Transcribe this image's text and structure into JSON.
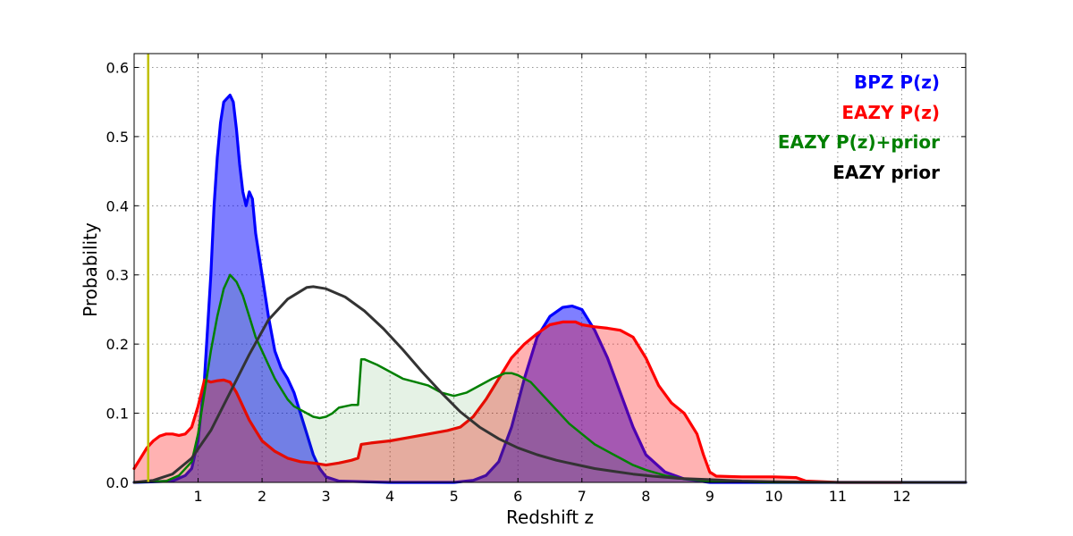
{
  "chart_data": {
    "type": "area",
    "title": "",
    "xlabel": "Redshift z",
    "ylabel": "Probability",
    "xlim": [
      0,
      13
    ],
    "ylim": [
      0,
      0.62
    ],
    "xticks": [
      1,
      2,
      3,
      4,
      5,
      6,
      7,
      8,
      9,
      10,
      11,
      12
    ],
    "yticks": [
      0.0,
      0.1,
      0.2,
      0.3,
      0.4,
      0.5,
      0.6
    ],
    "ytick_labels": [
      "0.0",
      "0.1",
      "0.2",
      "0.3",
      "0.4",
      "0.5",
      "0.6"
    ],
    "grid": true,
    "vline": {
      "x": 0.22,
      "color": "#bfbf00"
    },
    "legend": {
      "location": "top-right",
      "entries": [
        {
          "label": "BPZ P(z)",
          "color": "#0000ff"
        },
        {
          "label": "EAZY P(z)",
          "color": "#ff0000"
        },
        {
          "label": "EAZY P(z)+prior",
          "color": "#008000"
        },
        {
          "label": "EAZY prior",
          "color": "#000000"
        }
      ]
    },
    "series": [
      {
        "name": "BPZ P(z)",
        "color": "#0000ff",
        "fill": "#0000ff",
        "fill_opacity": 0.5,
        "x": [
          0,
          0.6,
          0.8,
          0.9,
          1.0,
          1.1,
          1.2,
          1.25,
          1.3,
          1.35,
          1.4,
          1.45,
          1.5,
          1.55,
          1.6,
          1.65,
          1.7,
          1.75,
          1.8,
          1.85,
          1.9,
          2.0,
          2.1,
          2.2,
          2.3,
          2.4,
          2.5,
          2.6,
          2.7,
          2.8,
          2.9,
          3.0,
          3.2,
          4.0,
          5.0,
          5.3,
          5.5,
          5.7,
          5.9,
          6.1,
          6.3,
          6.5,
          6.7,
          6.85,
          7.0,
          7.2,
          7.4,
          7.6,
          7.8,
          8.0,
          8.3,
          8.6,
          9.0,
          13.0
        ],
        "values": [
          0.0,
          0.002,
          0.01,
          0.02,
          0.06,
          0.15,
          0.3,
          0.4,
          0.47,
          0.52,
          0.55,
          0.555,
          0.56,
          0.55,
          0.51,
          0.46,
          0.42,
          0.4,
          0.42,
          0.41,
          0.36,
          0.3,
          0.24,
          0.19,
          0.165,
          0.15,
          0.13,
          0.1,
          0.07,
          0.04,
          0.02,
          0.008,
          0.002,
          0.0,
          0.0,
          0.003,
          0.01,
          0.03,
          0.08,
          0.15,
          0.21,
          0.24,
          0.253,
          0.255,
          0.25,
          0.22,
          0.18,
          0.13,
          0.08,
          0.04,
          0.015,
          0.005,
          0.0,
          0.0
        ]
      },
      {
        "name": "EAZY P(z)",
        "color": "#ff0000",
        "fill": "#ff0000",
        "fill_opacity": 0.3,
        "x": [
          0,
          0.1,
          0.2,
          0.3,
          0.4,
          0.5,
          0.6,
          0.7,
          0.8,
          0.9,
          1.0,
          1.1,
          1.2,
          1.3,
          1.4,
          1.5,
          1.6,
          1.7,
          1.8,
          1.9,
          2.0,
          2.2,
          2.4,
          2.6,
          2.8,
          3.0,
          3.2,
          3.4,
          3.5,
          3.55,
          3.7,
          4.0,
          4.3,
          4.6,
          4.9,
          5.1,
          5.3,
          5.5,
          5.7,
          5.9,
          6.1,
          6.3,
          6.5,
          6.7,
          6.9,
          7.0,
          7.2,
          7.4,
          7.6,
          7.8,
          8.0,
          8.2,
          8.4,
          8.6,
          8.8,
          8.9,
          9.0,
          9.1,
          9.5,
          10.0,
          10.35,
          10.5,
          11.0,
          12.0
        ],
        "values": [
          0.02,
          0.035,
          0.05,
          0.06,
          0.067,
          0.07,
          0.07,
          0.068,
          0.07,
          0.08,
          0.11,
          0.148,
          0.145,
          0.147,
          0.148,
          0.145,
          0.13,
          0.11,
          0.09,
          0.075,
          0.06,
          0.045,
          0.035,
          0.03,
          0.028,
          0.025,
          0.028,
          0.032,
          0.035,
          0.055,
          0.057,
          0.06,
          0.065,
          0.07,
          0.075,
          0.08,
          0.095,
          0.12,
          0.15,
          0.18,
          0.2,
          0.215,
          0.228,
          0.232,
          0.232,
          0.228,
          0.225,
          0.223,
          0.22,
          0.21,
          0.18,
          0.14,
          0.115,
          0.1,
          0.07,
          0.04,
          0.015,
          0.009,
          0.008,
          0.008,
          0.007,
          0.002,
          0.0,
          0.0
        ]
      },
      {
        "name": "EAZY P(z)+prior",
        "color": "#008000",
        "fill": "#008000",
        "fill_opacity": 0.1,
        "x": [
          0,
          0.5,
          0.7,
          0.9,
          1.0,
          1.1,
          1.2,
          1.3,
          1.4,
          1.5,
          1.6,
          1.7,
          1.8,
          1.9,
          2.0,
          2.1,
          2.2,
          2.3,
          2.4,
          2.5,
          2.6,
          2.7,
          2.8,
          2.9,
          3.0,
          3.1,
          3.2,
          3.3,
          3.4,
          3.5,
          3.55,
          3.6,
          3.8,
          4.0,
          4.2,
          4.4,
          4.6,
          4.8,
          5.0,
          5.2,
          5.4,
          5.6,
          5.8,
          5.9,
          6.0,
          6.2,
          6.4,
          6.6,
          6.8,
          7.0,
          7.2,
          7.4,
          7.6,
          7.8,
          8.0,
          8.3,
          8.6,
          9.0,
          9.5,
          10.0,
          11.0,
          12.0,
          13.0
        ],
        "values": [
          0.0,
          0.002,
          0.01,
          0.03,
          0.07,
          0.13,
          0.19,
          0.24,
          0.28,
          0.3,
          0.29,
          0.27,
          0.24,
          0.21,
          0.19,
          0.17,
          0.15,
          0.135,
          0.12,
          0.11,
          0.105,
          0.1,
          0.095,
          0.093,
          0.095,
          0.1,
          0.108,
          0.11,
          0.112,
          0.112,
          0.178,
          0.178,
          0.17,
          0.16,
          0.15,
          0.145,
          0.14,
          0.13,
          0.125,
          0.13,
          0.14,
          0.15,
          0.158,
          0.158,
          0.155,
          0.145,
          0.125,
          0.105,
          0.085,
          0.07,
          0.055,
          0.045,
          0.035,
          0.025,
          0.018,
          0.01,
          0.005,
          0.002,
          0.001,
          0.0,
          0.0,
          0.0,
          0.0
        ]
      },
      {
        "name": "EAZY prior",
        "color": "#333333",
        "fill": "none",
        "x": [
          0,
          0.3,
          0.6,
          0.9,
          1.2,
          1.5,
          1.8,
          2.1,
          2.4,
          2.7,
          2.8,
          3.0,
          3.3,
          3.6,
          3.9,
          4.2,
          4.5,
          4.8,
          5.1,
          5.4,
          5.7,
          6.0,
          6.3,
          6.6,
          6.9,
          7.2,
          7.5,
          7.8,
          8.1,
          8.5,
          9.0,
          9.5,
          10.0,
          11.0,
          12.0,
          13.0
        ],
        "values": [
          0.0,
          0.003,
          0.012,
          0.035,
          0.075,
          0.13,
          0.185,
          0.235,
          0.265,
          0.282,
          0.283,
          0.28,
          0.268,
          0.248,
          0.222,
          0.192,
          0.16,
          0.13,
          0.102,
          0.08,
          0.063,
          0.05,
          0.04,
          0.032,
          0.026,
          0.02,
          0.016,
          0.012,
          0.009,
          0.006,
          0.004,
          0.002,
          0.001,
          0.0,
          0.0,
          0.0
        ]
      }
    ]
  }
}
